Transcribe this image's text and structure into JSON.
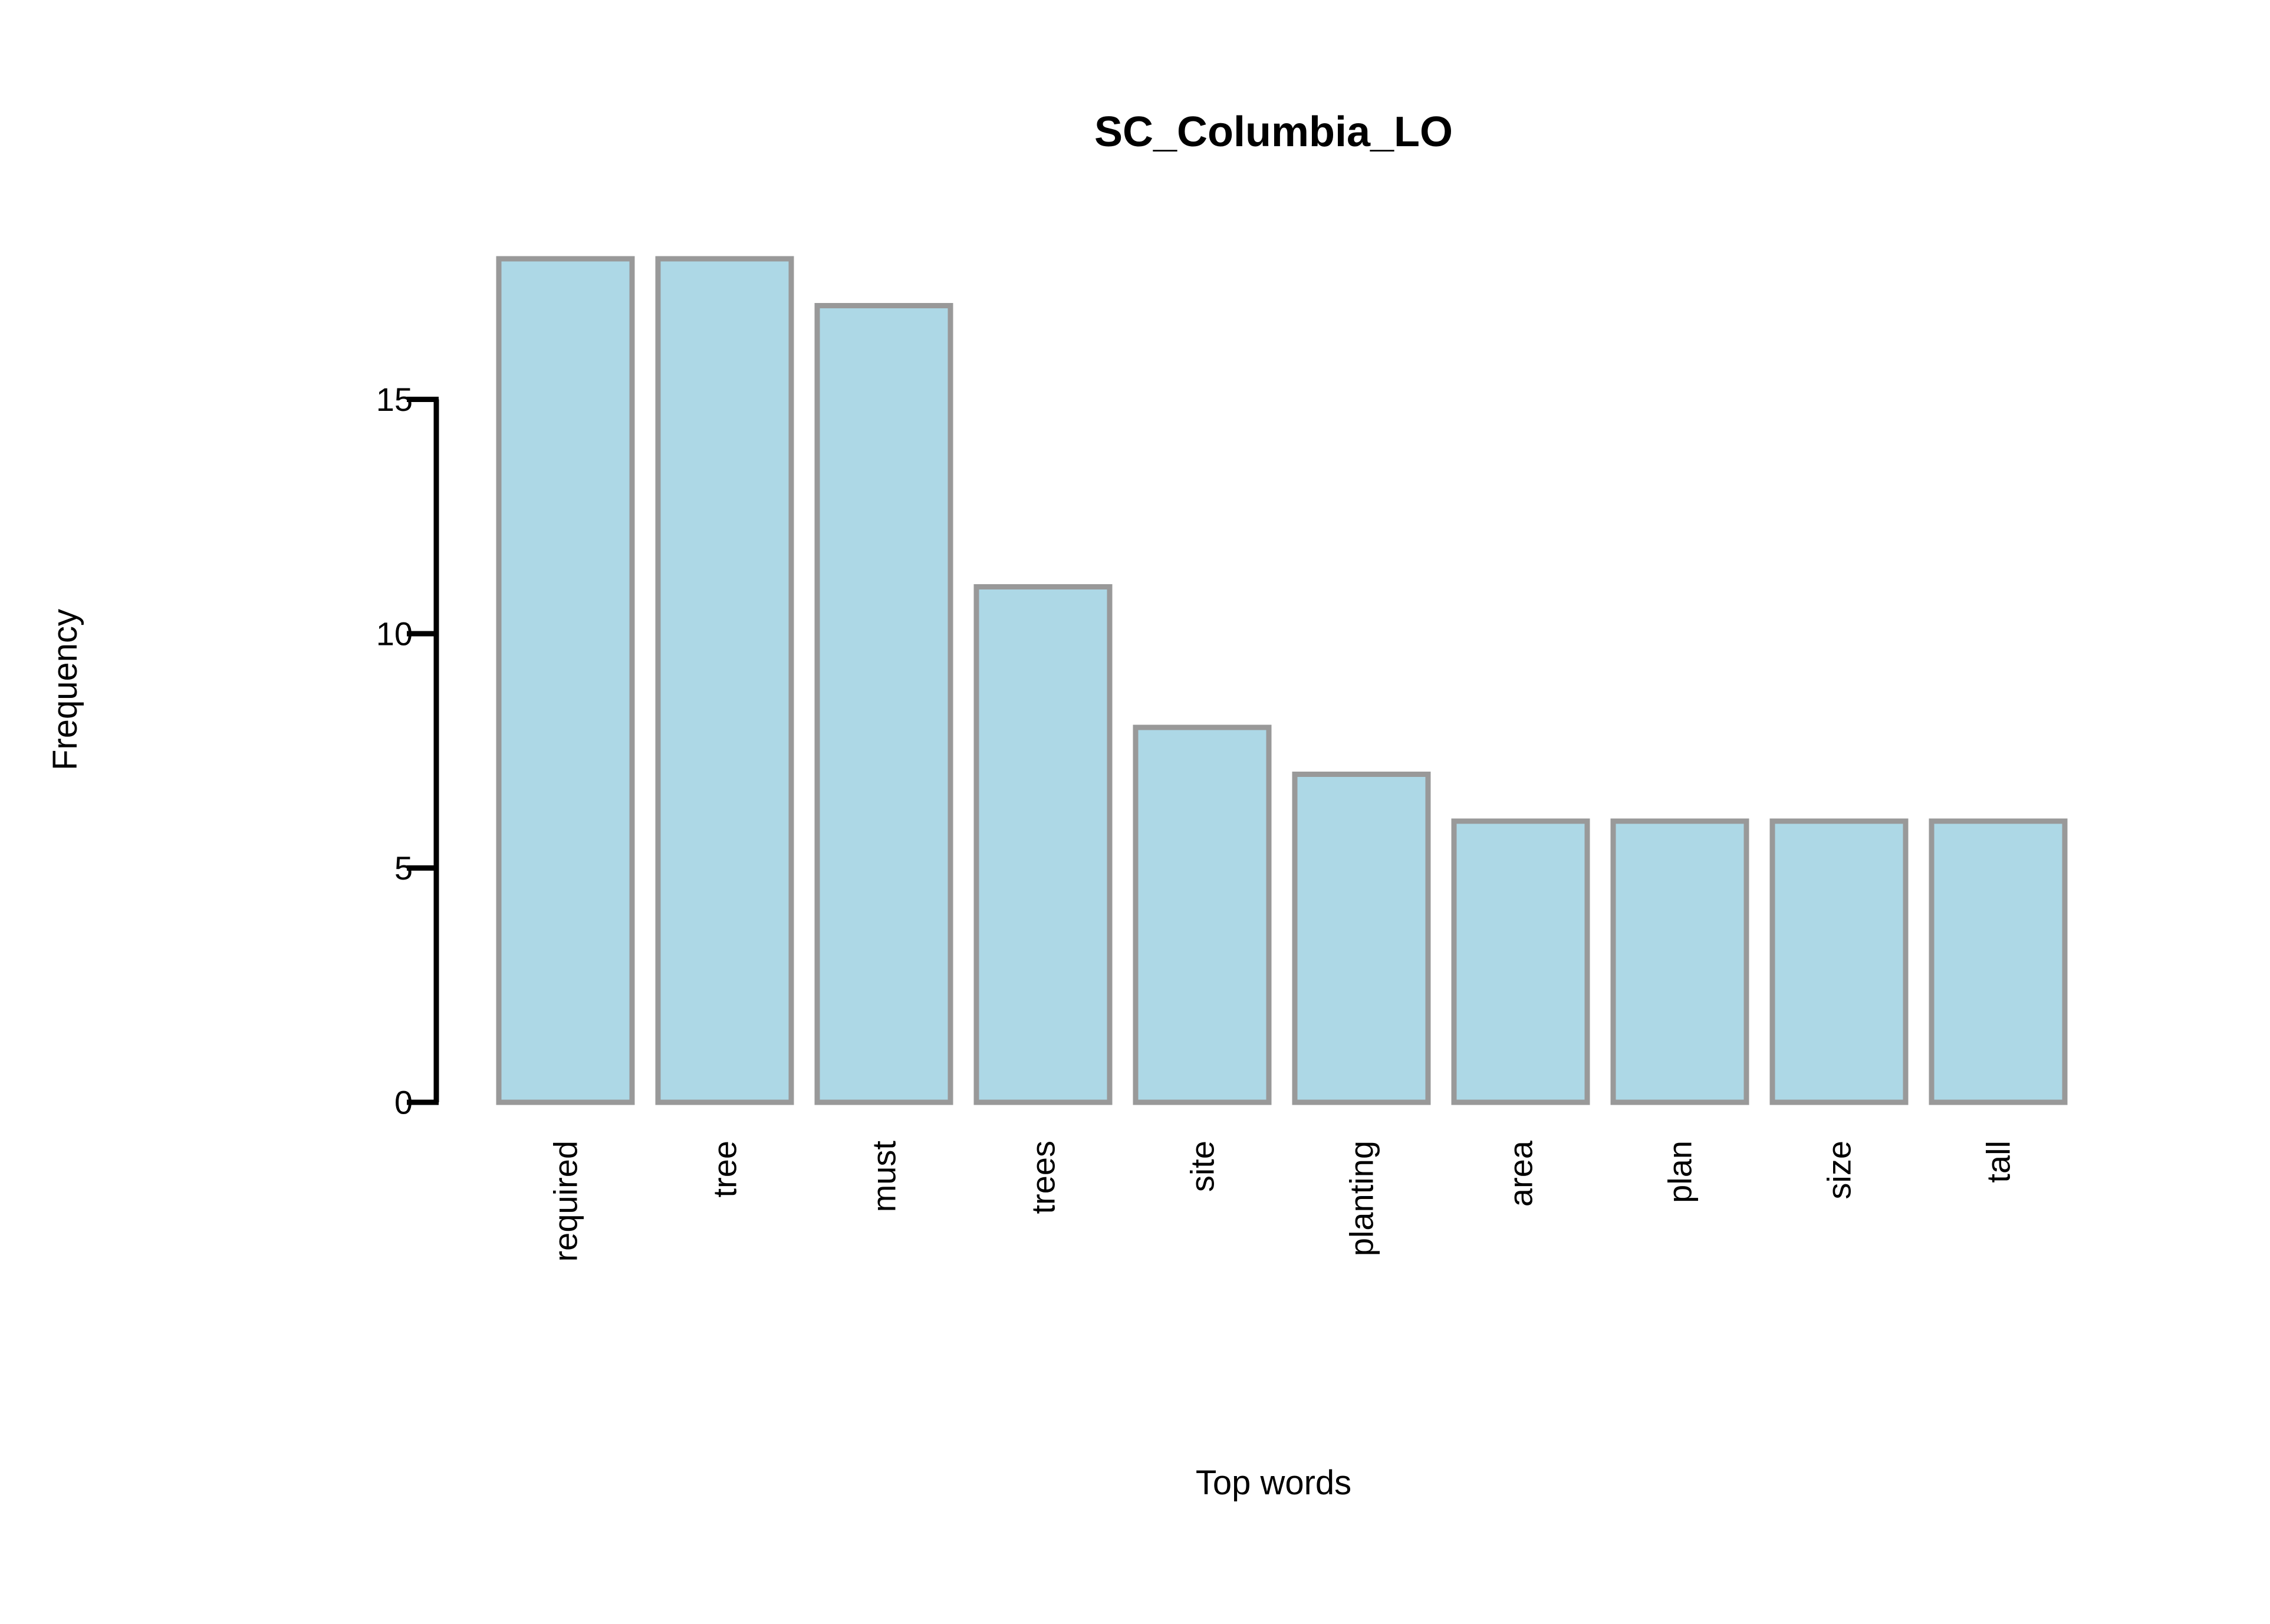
{
  "chart_data": {
    "type": "bar",
    "title": "SC_Columbia_LO",
    "xlabel": "Top words",
    "ylabel": "Frequency",
    "categories": [
      "required",
      "tree",
      "must",
      "trees",
      "site",
      "planting",
      "area",
      "plan",
      "size",
      "tall"
    ],
    "values": [
      18,
      18,
      17,
      11,
      8,
      7,
      6,
      6,
      6,
      6
    ],
    "yticks": [
      0,
      5,
      10,
      15
    ],
    "ylim": [
      0,
      18
    ],
    "grid": false,
    "legend": "none",
    "colors": {
      "bar_fill": "#add8e6",
      "bar_stroke": "#999999",
      "axis": "#000000"
    }
  }
}
